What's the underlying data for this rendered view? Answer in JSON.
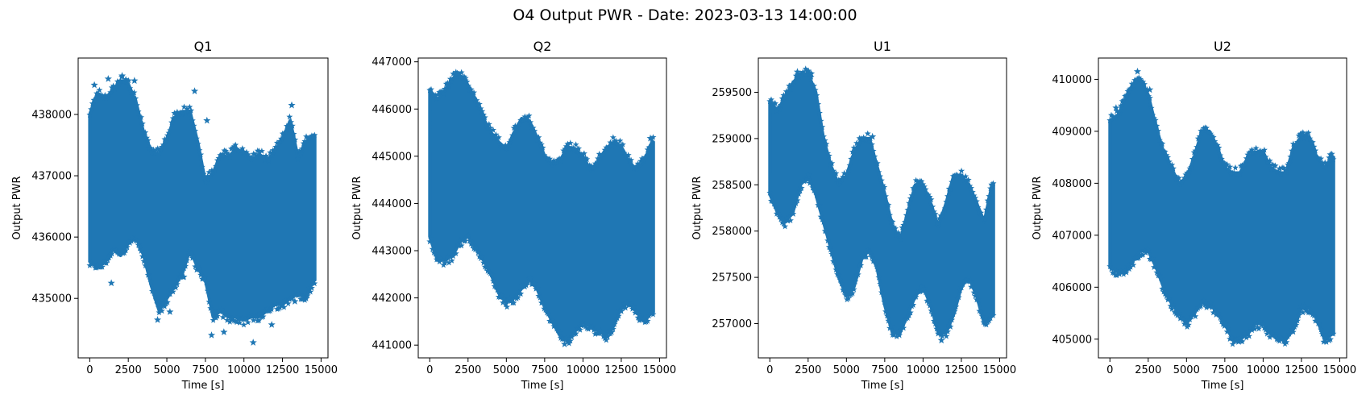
{
  "figure": {
    "suptitle": "O4 Output PWR - Date: 2023-03-13 14:00:00",
    "marker_color": "#1f77b4"
  },
  "chart_data": [
    {
      "type": "scatter",
      "title": "Q1",
      "xlabel": "Time [s]",
      "ylabel": "Output PWR",
      "marker": "star",
      "xlim": [
        -750,
        15450
      ],
      "ylim": [
        434030,
        438920
      ],
      "xticks": [
        0,
        2500,
        5000,
        7500,
        10000,
        12500,
        15000
      ],
      "yticks": [
        435000,
        436000,
        437000,
        438000
      ],
      "grid": false,
      "envelope": {
        "t": [
          0,
          500,
          1000,
          1500,
          2000,
          2500,
          3000,
          3500,
          4000,
          4500,
          5000,
          5500,
          6000,
          6500,
          7000,
          7500,
          8000,
          8500,
          9000,
          9500,
          10000,
          10500,
          11000,
          11500,
          12000,
          12500,
          13000,
          13500,
          14000,
          14500
        ],
        "upper": [
          438000,
          438350,
          438250,
          438400,
          438550,
          438500,
          438200,
          437700,
          437400,
          437350,
          437600,
          437950,
          438050,
          438050,
          437550,
          436900,
          437050,
          437350,
          437300,
          437450,
          437350,
          437250,
          437350,
          437250,
          437400,
          437600,
          437900,
          437300,
          437550,
          437650
        ],
        "lower": [
          435600,
          435500,
          435600,
          435800,
          435700,
          435900,
          436000,
          435700,
          435200,
          434800,
          435000,
          435200,
          435400,
          435800,
          435500,
          435300,
          434700,
          434800,
          434700,
          434700,
          434650,
          434700,
          434700,
          434800,
          434900,
          434900,
          435000,
          435100,
          435000,
          435300
        ]
      },
      "outliers": [
        [
          300,
          438480
        ],
        [
          1200,
          438580
        ],
        [
          2100,
          438630
        ],
        [
          2900,
          438550
        ],
        [
          6800,
          438380
        ],
        [
          7600,
          437900
        ],
        [
          13100,
          438150
        ],
        [
          1400,
          435250
        ],
        [
          4400,
          434650
        ],
        [
          5200,
          434780
        ],
        [
          6100,
          435350
        ],
        [
          7900,
          434400
        ],
        [
          8700,
          434450
        ],
        [
          10600,
          434280
        ],
        [
          11800,
          434570
        ],
        [
          13300,
          434950
        ]
      ]
    },
    {
      "type": "scatter",
      "title": "Q2",
      "xlabel": "Time [s]",
      "ylabel": "Output PWR",
      "marker": "star",
      "xlim": [
        -750,
        15450
      ],
      "ylim": [
        440730,
        447080
      ],
      "xticks": [
        0,
        2500,
        5000,
        7500,
        10000,
        12500,
        15000
      ],
      "yticks": [
        441000,
        442000,
        443000,
        444000,
        445000,
        446000,
        447000
      ],
      "grid": false,
      "envelope": {
        "t": [
          0,
          500,
          1000,
          1500,
          2000,
          2500,
          3000,
          3500,
          4000,
          4500,
          5000,
          5500,
          6000,
          6500,
          7000,
          7500,
          8000,
          8500,
          9000,
          9500,
          10000,
          10500,
          11000,
          11500,
          12000,
          12500,
          13000,
          13500,
          14000,
          14500
        ],
        "upper": [
          446400,
          446200,
          446400,
          446650,
          446700,
          446500,
          446200,
          445800,
          445500,
          445300,
          445150,
          445500,
          445800,
          445750,
          445400,
          445000,
          444800,
          444900,
          445200,
          445150,
          445000,
          444700,
          444900,
          445150,
          445300,
          445200,
          444900,
          444700,
          444900,
          445300
        ],
        "lower": [
          443300,
          442800,
          442800,
          442900,
          443200,
          443300,
          443100,
          442800,
          442500,
          442100,
          441900,
          442000,
          442200,
          442400,
          442200,
          441800,
          441500,
          441200,
          441100,
          441300,
          441500,
          441400,
          441300,
          441200,
          441400,
          441800,
          441900,
          441700,
          441500,
          441700
        ]
      },
      "outliers": [
        [
          1800,
          446750
        ],
        [
          2300,
          446600
        ],
        [
          8800,
          441020
        ],
        [
          11600,
          441180
        ],
        [
          14400,
          445380
        ]
      ]
    },
    {
      "type": "scatter",
      "title": "U1",
      "xlabel": "Time [s]",
      "ylabel": "Output PWR",
      "marker": "star",
      "xlim": [
        -750,
        15450
      ],
      "ylim": [
        256630,
        259870
      ],
      "xticks": [
        0,
        2500,
        5000,
        7500,
        10000,
        12500,
        15000
      ],
      "yticks": [
        257000,
        257500,
        258000,
        258500,
        259000,
        259500
      ],
      "grid": false,
      "envelope": {
        "t": [
          0,
          500,
          1000,
          1500,
          2000,
          2500,
          3000,
          3500,
          4000,
          4500,
          5000,
          5500,
          6000,
          6500,
          7000,
          7500,
          8000,
          8500,
          9000,
          9500,
          10000,
          10500,
          11000,
          11500,
          12000,
          12500,
          13000,
          13500,
          14000,
          14500
        ],
        "upper": [
          259400,
          259300,
          259450,
          259600,
          259700,
          259700,
          259500,
          259000,
          258700,
          258500,
          258600,
          258850,
          259000,
          259000,
          258700,
          258400,
          258050,
          257900,
          258200,
          258500,
          258500,
          258300,
          258050,
          258300,
          258600,
          258600,
          258500,
          258300,
          258100,
          258500
        ],
        "lower": [
          258400,
          258200,
          258100,
          258200,
          258500,
          258600,
          258400,
          258100,
          257800,
          257500,
          257300,
          257400,
          257700,
          257800,
          257600,
          257200,
          256900,
          256900,
          257100,
          257300,
          257400,
          257200,
          256900,
          256900,
          257100,
          257400,
          257500,
          257300,
          257000,
          257100
        ]
      },
      "outliers": [
        [
          1800,
          259720
        ],
        [
          2700,
          259700
        ],
        [
          6700,
          259020
        ],
        [
          11200,
          256820
        ],
        [
          14500,
          258500
        ]
      ]
    },
    {
      "type": "scatter",
      "title": "U2",
      "xlabel": "Time [s]",
      "ylabel": "Output PWR",
      "marker": "star",
      "xlim": [
        -750,
        15450
      ],
      "ylim": [
        404640,
        410410
      ],
      "xticks": [
        0,
        2500,
        5000,
        7500,
        10000,
        12500,
        15000
      ],
      "yticks": [
        405000,
        406000,
        407000,
        408000,
        409000,
        410000
      ],
      "grid": false,
      "envelope": {
        "t": [
          0,
          500,
          1000,
          1500,
          2000,
          2500,
          3000,
          3500,
          4000,
          4500,
          5000,
          5500,
          6000,
          6500,
          7000,
          7500,
          8000,
          8500,
          9000,
          9500,
          10000,
          10500,
          11000,
          11500,
          12000,
          12500,
          13000,
          13500,
          14000,
          14500
        ],
        "upper": [
          409200,
          409300,
          409600,
          409900,
          410000,
          409700,
          409100,
          408600,
          408300,
          408000,
          408100,
          408500,
          409000,
          409000,
          408700,
          408300,
          408200,
          408200,
          408500,
          408600,
          408600,
          408300,
          408200,
          408200,
          408700,
          408900,
          408900,
          408500,
          408300,
          408500
        ],
        "lower": [
          406400,
          406300,
          406300,
          406500,
          406700,
          406700,
          406400,
          406000,
          405700,
          405500,
          405300,
          405500,
          405700,
          405700,
          405500,
          405300,
          405000,
          405000,
          405100,
          405300,
          405300,
          405100,
          405000,
          405000,
          405200,
          405600,
          405600,
          405400,
          405000,
          405100
        ]
      },
      "outliers": [
        [
          1800,
          410150
        ],
        [
          400,
          409450
        ],
        [
          2600,
          409800
        ],
        [
          8400,
          404950
        ],
        [
          12500,
          408950
        ],
        [
          14300,
          404980
        ],
        [
          14400,
          408550
        ]
      ]
    }
  ]
}
